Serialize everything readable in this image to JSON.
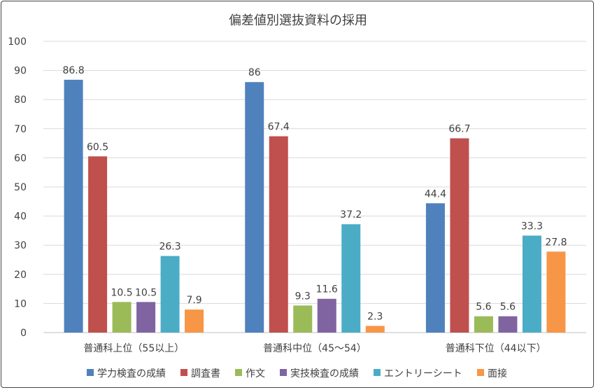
{
  "chart_data": {
    "type": "bar",
    "title": "偏差値別選抜資料の採用",
    "xlabel": "",
    "ylabel": "",
    "ylim": [
      0,
      100
    ],
    "yticks": [
      0,
      10,
      20,
      30,
      40,
      50,
      60,
      70,
      80,
      90,
      100
    ],
    "grid": true,
    "legend": "bottom",
    "categories": [
      "普通科上位（55以上）",
      "普通科中位（45～54）",
      "普通科下位（44以下）"
    ],
    "series": [
      {
        "name": "学力検査の成績",
        "color": "#4F81BD",
        "values": [
          86.8,
          86,
          44.4
        ]
      },
      {
        "name": "調査書",
        "color": "#C0504D",
        "values": [
          60.5,
          67.4,
          66.7
        ]
      },
      {
        "name": "作文",
        "color": "#9BBB59",
        "values": [
          10.5,
          9.3,
          5.6
        ]
      },
      {
        "name": "実技検査の成績",
        "color": "#8064A2",
        "values": [
          10.5,
          11.6,
          5.6
        ]
      },
      {
        "name": "エントリーシート",
        "color": "#4BACC6",
        "values": [
          26.3,
          37.2,
          33.3
        ]
      },
      {
        "name": "面接",
        "color": "#F79646",
        "values": [
          7.9,
          2.3,
          27.8
        ]
      }
    ]
  }
}
